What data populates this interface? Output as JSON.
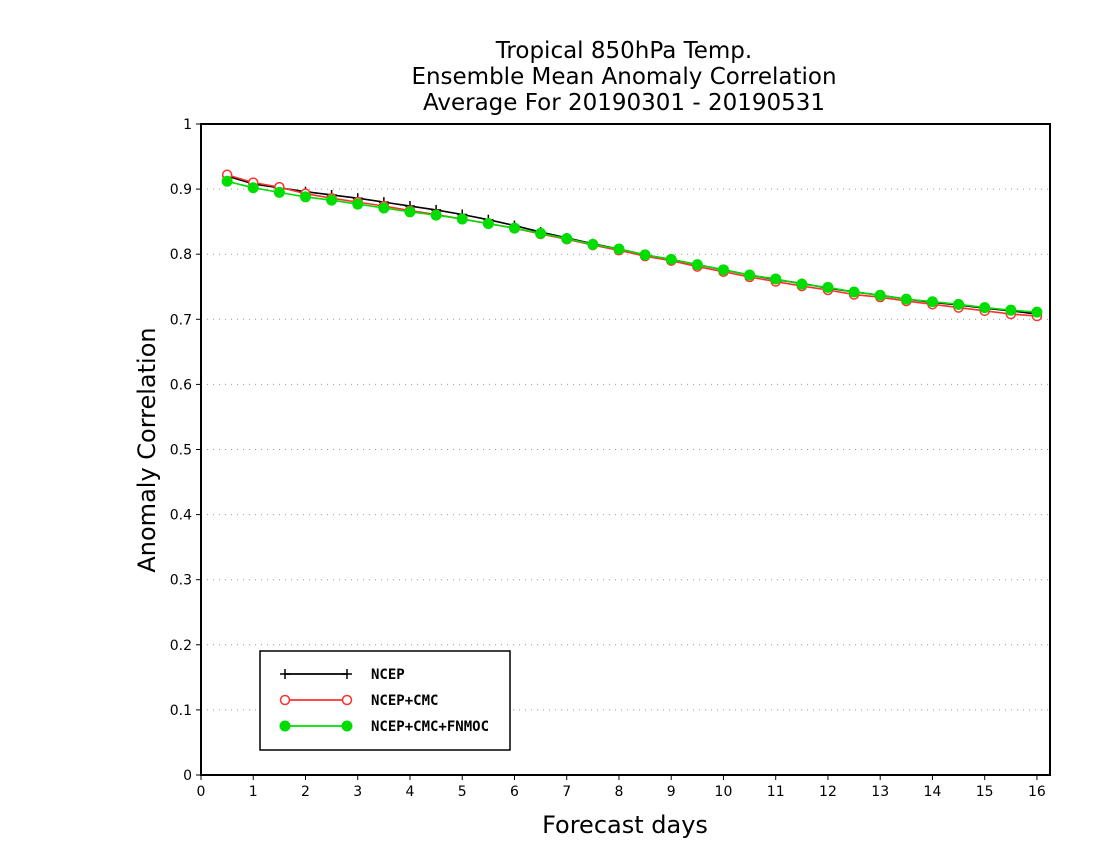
{
  "chart_data": {
    "type": "line",
    "title_lines": [
      "Tropical 850hPa Temp.",
      "Ensemble Mean Anomaly Correlation",
      "Average For 20190301 - 20190531"
    ],
    "xlabel": "Forecast days",
    "ylabel": "Anomaly Correlation",
    "xlim": [
      0,
      16.25
    ],
    "ylim": [
      0,
      1
    ],
    "x_ticks": [
      "0",
      "1",
      "2",
      "3",
      "4",
      "5",
      "6",
      "7",
      "8",
      "9",
      "10",
      "11",
      "12",
      "13",
      "14",
      "15",
      "16"
    ],
    "y_ticks": [
      "0",
      "0.1",
      "0.2",
      "0.3",
      "0.4",
      "0.5",
      "0.6",
      "0.7",
      "0.8",
      "0.9",
      "1"
    ],
    "grid": "dotted horizontal",
    "legend_position": "bottom-left",
    "x": [
      0.5,
      1,
      1.5,
      2,
      2.5,
      3,
      3.5,
      4,
      4.5,
      5,
      5.5,
      6,
      6.5,
      7,
      7.5,
      8,
      8.5,
      9,
      9.5,
      10,
      10.5,
      11,
      11.5,
      12,
      12.5,
      13,
      13.5,
      14,
      14.5,
      15,
      15.5,
      16
    ],
    "series": [
      {
        "name": "NCEP",
        "color": "#000000",
        "marker": "plus",
        "values": [
          0.92,
          0.908,
          0.902,
          0.896,
          0.891,
          0.886,
          0.88,
          0.874,
          0.868,
          0.861,
          0.853,
          0.844,
          0.834,
          0.825,
          0.816,
          0.808,
          0.799,
          0.792,
          0.784,
          0.776,
          0.768,
          0.761,
          0.755,
          0.748,
          0.742,
          0.737,
          0.731,
          0.726,
          0.722,
          0.717,
          0.713,
          0.708
        ]
      },
      {
        "name": "NCEP+CMC",
        "color": "#ff3030",
        "marker": "open-circle",
        "values": [
          0.922,
          0.91,
          0.903,
          0.893,
          0.886,
          0.88,
          0.874,
          0.867,
          0.861,
          0.854,
          0.847,
          0.84,
          0.831,
          0.823,
          0.814,
          0.806,
          0.797,
          0.79,
          0.781,
          0.773,
          0.765,
          0.758,
          0.751,
          0.745,
          0.738,
          0.734,
          0.728,
          0.723,
          0.718,
          0.713,
          0.708,
          0.705
        ]
      },
      {
        "name": "NCEP+CMC+FNMOC",
        "color": "#00dd00",
        "marker": "filled-circle",
        "values": [
          0.912,
          0.902,
          0.895,
          0.888,
          0.883,
          0.877,
          0.871,
          0.865,
          0.86,
          0.854,
          0.847,
          0.84,
          0.832,
          0.824,
          0.815,
          0.808,
          0.799,
          0.792,
          0.784,
          0.776,
          0.768,
          0.762,
          0.754,
          0.749,
          0.742,
          0.737,
          0.731,
          0.727,
          0.723,
          0.718,
          0.714,
          0.711
        ]
      }
    ]
  }
}
